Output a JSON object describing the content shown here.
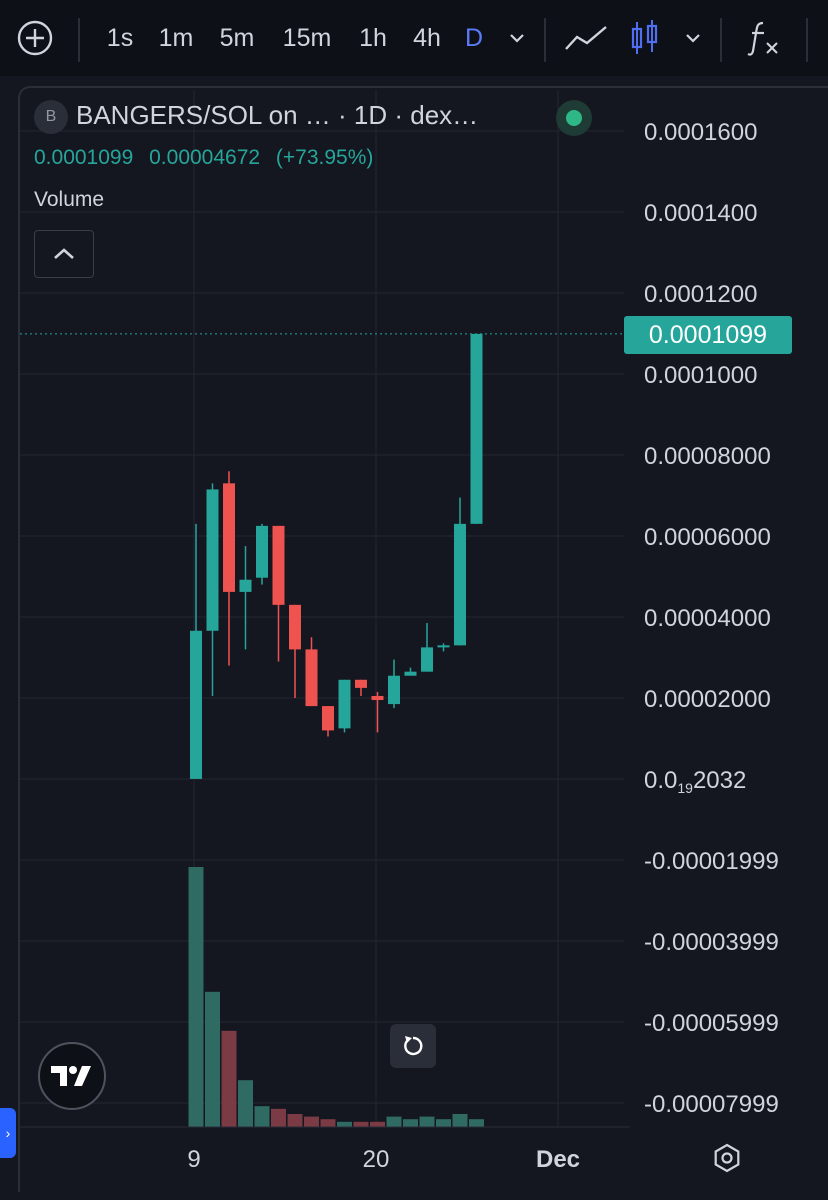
{
  "toolbar": {
    "add_icon": "plus-circle-icon",
    "intervals": [
      "1s",
      "1m",
      "5m",
      "15m",
      "1h",
      "4h",
      "D"
    ],
    "active_interval": "D",
    "chart_type_icons": [
      "line-chart-icon",
      "candlestick-icon"
    ],
    "indicators_icon": "fx-icon"
  },
  "legend": {
    "badge": "B",
    "title": "BANGERS/SOL on …  · 1D · dex…",
    "close": "0.0001099",
    "change": "0.00004672",
    "change_pct": "(+73.95%)",
    "volume_label": "Volume"
  },
  "price_axis": {
    "labels": [
      "0.0001600",
      "0.0001400",
      "0.0001200",
      "0.0001000",
      "0.00008000",
      "0.00006000",
      "0.00004000",
      "0.00002000",
      "0.0",
      "-0.00001999",
      "-0.00003999",
      "-0.00005999",
      "-0.00007999"
    ],
    "zero_label_main": "0.0",
    "zero_label_sub": "19",
    "zero_label_rest": "2032",
    "last_price": "0.0001099"
  },
  "time_axis": {
    "labels": [
      "9",
      "20",
      "Dec"
    ]
  },
  "colors": {
    "up": "#26a69a",
    "down": "#ef5350",
    "vol_up": "#2f6b63",
    "vol_down": "#7a3b44",
    "bg": "#141620",
    "grid": "#232632",
    "accent": "#2962ff"
  },
  "chart_data": {
    "type": "candlestick",
    "interval": "1D",
    "ylim": [
      -8e-05,
      0.00016
    ],
    "candles": [
      {
        "o": 2.03e-08,
        "h": 6.3e-05,
        "l": 2.03e-08,
        "c": 3.66e-05
      },
      {
        "o": 3.66e-05,
        "h": 7.3e-05,
        "l": 2.05e-05,
        "c": 7.15e-05
      },
      {
        "o": 7.3e-05,
        "h": 7.6e-05,
        "l": 2.8e-05,
        "c": 4.62e-05
      },
      {
        "o": 4.62e-05,
        "h": 5.75e-05,
        "l": 3.2e-05,
        "c": 4.92e-05
      },
      {
        "o": 4.97e-05,
        "h": 6.3e-05,
        "l": 4.8e-05,
        "c": 6.25e-05
      },
      {
        "o": 6.25e-05,
        "h": 6.25e-05,
        "l": 2.9e-05,
        "c": 4.3e-05
      },
      {
        "o": 4.3e-05,
        "h": 4.3e-05,
        "l": 2e-05,
        "c": 3.2e-05
      },
      {
        "o": 3.2e-05,
        "h": 3.5e-05,
        "l": 1.8e-05,
        "c": 1.8e-05
      },
      {
        "o": 1.8e-05,
        "h": 1.8e-05,
        "l": 1.05e-05,
        "c": 1.2e-05
      },
      {
        "o": 1.25e-05,
        "h": 2.45e-05,
        "l": 1.15e-05,
        "c": 2.45e-05
      },
      {
        "o": 2.45e-05,
        "h": 2.45e-05,
        "l": 2.05e-05,
        "c": 2.25e-05
      },
      {
        "o": 2.05e-05,
        "h": 2.15e-05,
        "l": 1.15e-05,
        "c": 1.95e-05
      },
      {
        "o": 1.85e-05,
        "h": 2.95e-05,
        "l": 1.75e-05,
        "c": 2.55e-05
      },
      {
        "o": 2.55e-05,
        "h": 2.75e-05,
        "l": 2.55e-05,
        "c": 2.65e-05
      },
      {
        "o": 2.65e-05,
        "h": 3.85e-05,
        "l": 2.65e-05,
        "c": 3.25e-05
      },
      {
        "o": 3.25e-05,
        "h": 3.35e-05,
        "l": 3.15e-05,
        "c": 3.3e-05
      },
      {
        "o": 3.3e-05,
        "h": 6.95e-05,
        "l": 3.3e-05,
        "c": 6.3e-05
      },
      {
        "o": 6.3e-05,
        "h": 0.0001099,
        "l": 6.3e-05,
        "c": 0.0001099
      }
    ],
    "volume": [
      100,
      52,
      37,
      18,
      8,
      7,
      5,
      4,
      3,
      2,
      2,
      2,
      4,
      3,
      4,
      3,
      5,
      3
    ]
  }
}
